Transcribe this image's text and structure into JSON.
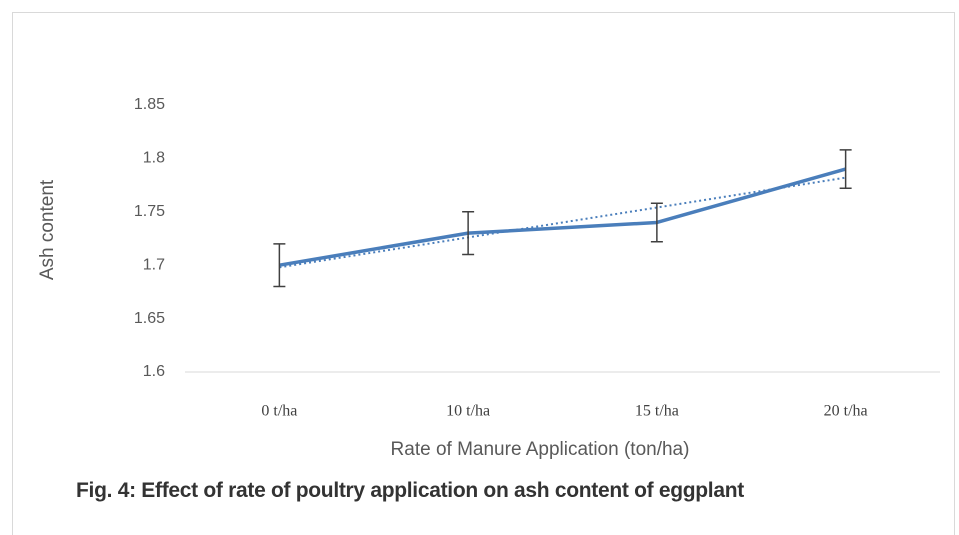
{
  "chart_data": {
    "type": "line",
    "categories": [
      "0 t/ha",
      "10 t/ha",
      "15 t/ha",
      "20 t/ha"
    ],
    "series": [
      {
        "name": "Ash content",
        "color": "#4a7ebb",
        "values": [
          1.7,
          1.73,
          1.74,
          1.79
        ],
        "errors": [
          0.02,
          0.02,
          0.018,
          0.018
        ]
      }
    ],
    "ylim": [
      1.6,
      1.85
    ],
    "yticks": [
      1.6,
      1.65,
      1.7,
      1.75,
      1.8,
      1.85
    ],
    "y_label": "Ash content",
    "x_label": "Rate of Manure Application (ton/ha)",
    "trendline": "linear",
    "grid": false,
    "caption": "Fig. 4: Effect of rate of poultry application on ash content of eggplant"
  }
}
